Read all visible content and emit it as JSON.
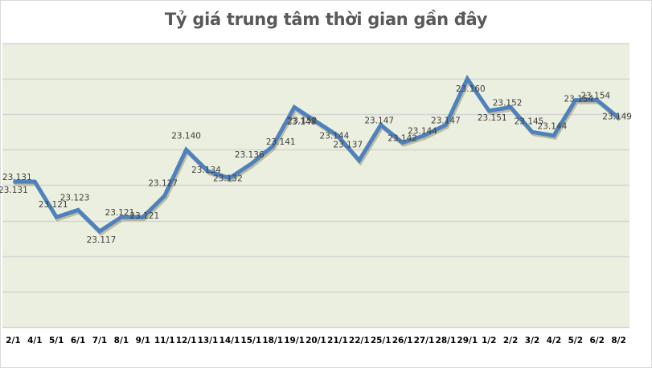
{
  "chart_data": {
    "type": "line",
    "title": "Tỷ giá trung tâm thời gian gần đây",
    "xlabel": "",
    "ylabel": "",
    "categories": [
      "2/1",
      "4/1",
      "5/1",
      "6/1",
      "7/1",
      "8/1",
      "9/1",
      "11/1",
      "12/1",
      "13/1",
      "14/1",
      "15/1",
      "18/1",
      "19/1",
      "20/1",
      "21/1",
      "22/1",
      "25/1",
      "26/1",
      "27/1",
      "28/1",
      "29/1",
      "1/2",
      "2/2",
      "3/2",
      "4/2",
      "5/2",
      "6/2",
      "8/2"
    ],
    "series": [
      {
        "name": "Tỷ giá trung tâm",
        "values": [
          23.131,
          23.131,
          23.121,
          23.123,
          23.117,
          23.121,
          23.121,
          23.127,
          23.14,
          23.134,
          23.132,
          23.136,
          23.141,
          23.152,
          23.148,
          23.144,
          23.137,
          23.147,
          23.142,
          23.144,
          23.147,
          23.16,
          23.151,
          23.152,
          23.145,
          23.144,
          23.154,
          23.154,
          23.149
        ],
        "labels": [
          "23.131",
          "23.131",
          "23.121",
          "23.123",
          "23.117",
          "23.121",
          "23.121",
          "23.127",
          "23.140",
          "23.134",
          "23.132",
          "23.136",
          "23.141",
          "23.152",
          "23.148",
          "23.144",
          "23.137",
          "23.147",
          "23.142",
          "23.144",
          "23.147",
          "23.160",
          "23.151",
          "23.152",
          "23.145",
          "23.144",
          "23.154",
          "23.154",
          "23.149"
        ],
        "color": "#4f81bd"
      }
    ],
    "ylim": [
      23.09,
      23.17
    ],
    "grid": true,
    "gridline_step": 0.01,
    "legend": "none",
    "plot_background": "#ebefdf"
  }
}
